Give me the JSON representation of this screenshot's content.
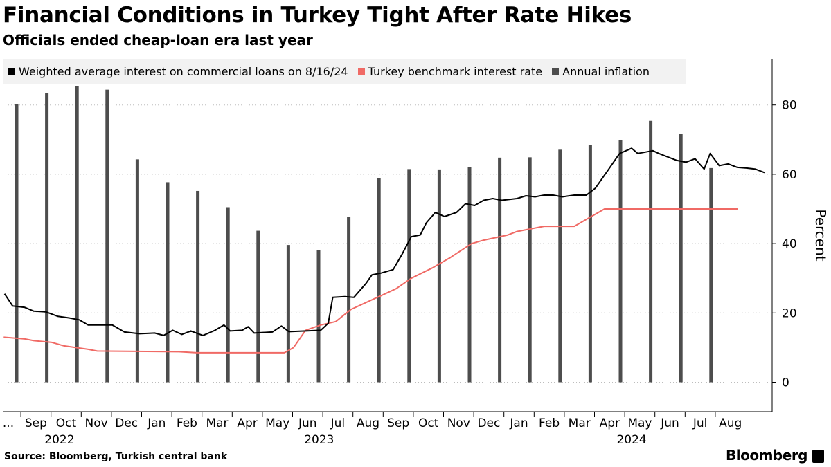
{
  "header": {
    "title": "Financial Conditions in Turkey Tight After Rate Hikes",
    "subtitle": "Officials ended cheap-loan era last year"
  },
  "footer": {
    "source": "Source: Bloomberg, Turkish central bank",
    "brand": "Bloomberg"
  },
  "colors": {
    "loans": "#000000",
    "benchmark": "#f06a65",
    "inflation": "#4d4d4d"
  },
  "chart_data": {
    "type": "bar+line",
    "title": "Financial Conditions in Turkey Tight After Rate Hikes",
    "ylabel": "Percent",
    "ylim": [
      -8,
      92
    ],
    "yticks": [
      0,
      20,
      40,
      60,
      80
    ],
    "x_range": [
      0.0,
      24.33
    ],
    "x_month_labels": [
      {
        "label": "...",
        "x": 0.0
      },
      {
        "label": "Sep",
        "x": 1.0
      },
      {
        "label": "Oct",
        "x": 2.0
      },
      {
        "label": "Nov",
        "x": 3.0
      },
      {
        "label": "Dec",
        "x": 4.0
      },
      {
        "label": "Jan",
        "x": 5.0
      },
      {
        "label": "Feb",
        "x": 6.0
      },
      {
        "label": "Mar",
        "x": 7.0
      },
      {
        "label": "Apr",
        "x": 8.0
      },
      {
        "label": "May",
        "x": 9.0
      },
      {
        "label": "Jun",
        "x": 10.0
      },
      {
        "label": "Jul",
        "x": 11.0
      },
      {
        "label": "Aug",
        "x": 12.0
      },
      {
        "label": "Sep",
        "x": 13.0
      },
      {
        "label": "Oct",
        "x": 14.0
      },
      {
        "label": "Nov",
        "x": 15.0
      },
      {
        "label": "Dec",
        "x": 16.0
      },
      {
        "label": "Jan",
        "x": 17.0
      },
      {
        "label": "Feb",
        "x": 18.0
      },
      {
        "label": "Mar",
        "x": 19.0
      },
      {
        "label": "Apr",
        "x": 20.0
      },
      {
        "label": "May",
        "x": 21.0
      },
      {
        "label": "Jun",
        "x": 22.0
      },
      {
        "label": "Jul",
        "x": 23.0
      },
      {
        "label": "Aug",
        "x": 24.0
      }
    ],
    "x_year_labels": [
      {
        "label": "2022",
        "x": 1.85
      },
      {
        "label": "2023",
        "x": 10.45
      },
      {
        "label": "2024",
        "x": 20.8
      }
    ],
    "legend": [
      {
        "key": "loans",
        "label": "Weighted average interest on commercial loans on 8/16/24"
      },
      {
        "key": "benchmark",
        "label": "Turkey benchmark interest rate"
      },
      {
        "key": "inflation",
        "label": "Annual inflation"
      }
    ],
    "series": [
      {
        "key": "inflation",
        "name": "Annual inflation",
        "type": "bar",
        "x": [
          0.43,
          1.43,
          2.43,
          3.43,
          4.43,
          5.43,
          6.43,
          7.43,
          8.43,
          9.43,
          10.43,
          11.43,
          12.43,
          13.43,
          14.43,
          15.43,
          16.43,
          17.43,
          18.43,
          19.43,
          20.43,
          21.43,
          22.43,
          23.43
        ],
        "values": [
          80.2,
          83.5,
          85.5,
          84.4,
          64.3,
          57.7,
          55.2,
          50.5,
          43.7,
          39.6,
          38.2,
          47.8,
          58.9,
          61.5,
          61.4,
          62.0,
          64.8,
          64.9,
          67.1,
          68.5,
          69.8,
          75.4,
          71.6,
          61.8
        ]
      },
      {
        "key": "benchmark",
        "name": "Turkey benchmark interest rate",
        "type": "step-line",
        "points": [
          [
            0.0,
            13.0
          ],
          [
            0.7,
            12.5
          ],
          [
            1.0,
            12.0
          ],
          [
            1.6,
            11.5
          ],
          [
            2.0,
            10.5
          ],
          [
            2.8,
            9.5
          ],
          [
            3.1,
            9.0
          ],
          [
            5.8,
            8.8
          ],
          [
            6.4,
            8.5
          ],
          [
            9.3,
            8.5
          ],
          [
            9.6,
            10.0
          ],
          [
            10.0,
            15.0
          ],
          [
            10.5,
            16.5
          ],
          [
            11.0,
            17.5
          ],
          [
            11.5,
            21.0
          ],
          [
            12.5,
            25.0
          ],
          [
            13.0,
            27.0
          ],
          [
            13.5,
            30.0
          ],
          [
            14.2,
            33.0
          ],
          [
            14.8,
            36.0
          ],
          [
            15.5,
            40.0
          ],
          [
            15.9,
            41.0
          ],
          [
            16.7,
            42.5
          ],
          [
            17.0,
            43.5
          ],
          [
            17.9,
            45.0
          ],
          [
            18.9,
            45.0
          ],
          [
            19.9,
            50.0
          ],
          [
            24.33,
            50.0
          ]
        ]
      },
      {
        "key": "loans",
        "name": "Weighted average interest on commercial loans on 8/16/24",
        "type": "line",
        "points": [
          [
            0.03,
            25.5
          ],
          [
            0.3,
            22.0
          ],
          [
            0.7,
            21.6
          ],
          [
            1.0,
            20.5
          ],
          [
            1.4,
            20.3
          ],
          [
            1.8,
            19.0
          ],
          [
            2.2,
            18.5
          ],
          [
            2.5,
            18.0
          ],
          [
            2.8,
            16.5
          ],
          [
            3.2,
            16.5
          ],
          [
            3.6,
            16.5
          ],
          [
            4.0,
            14.5
          ],
          [
            4.5,
            14.0
          ],
          [
            5.0,
            14.2
          ],
          [
            5.3,
            13.5
          ],
          [
            5.6,
            15.0
          ],
          [
            5.9,
            13.8
          ],
          [
            6.2,
            14.8
          ],
          [
            6.6,
            13.5
          ],
          [
            7.0,
            15.0
          ],
          [
            7.3,
            16.5
          ],
          [
            7.5,
            14.8
          ],
          [
            7.9,
            15.0
          ],
          [
            8.1,
            16.0
          ],
          [
            8.3,
            14.2
          ],
          [
            8.9,
            14.5
          ],
          [
            9.2,
            16.2
          ],
          [
            9.45,
            14.6
          ],
          [
            10.0,
            14.8
          ],
          [
            10.5,
            15.0
          ],
          [
            10.75,
            17.0
          ],
          [
            10.9,
            24.5
          ],
          [
            11.3,
            24.7
          ],
          [
            11.6,
            24.5
          ],
          [
            12.0,
            28.5
          ],
          [
            12.2,
            31.0
          ],
          [
            12.5,
            31.5
          ],
          [
            12.9,
            32.5
          ],
          [
            13.2,
            37.0
          ],
          [
            13.5,
            42.0
          ],
          [
            13.8,
            42.5
          ],
          [
            14.0,
            46.0
          ],
          [
            14.3,
            49.0
          ],
          [
            14.6,
            47.8
          ],
          [
            15.0,
            49.0
          ],
          [
            15.3,
            51.5
          ],
          [
            15.6,
            51.0
          ],
          [
            15.9,
            52.5
          ],
          [
            16.2,
            53.0
          ],
          [
            16.5,
            52.5
          ],
          [
            17.0,
            53.0
          ],
          [
            17.3,
            53.8
          ],
          [
            17.6,
            53.5
          ],
          [
            17.9,
            54.0
          ],
          [
            18.2,
            54.0
          ],
          [
            18.5,
            53.5
          ],
          [
            18.9,
            54.0
          ],
          [
            19.3,
            54.0
          ],
          [
            19.6,
            56.0
          ],
          [
            20.0,
            61.0
          ],
          [
            20.4,
            66.0
          ],
          [
            20.8,
            67.5
          ],
          [
            21.0,
            66.0
          ],
          [
            21.5,
            66.8
          ],
          [
            21.7,
            66.0
          ],
          [
            22.0,
            65.0
          ],
          [
            22.3,
            64.0
          ],
          [
            22.6,
            63.5
          ],
          [
            22.9,
            64.5
          ],
          [
            23.2,
            61.5
          ],
          [
            23.4,
            66.0
          ],
          [
            23.7,
            62.5
          ],
          [
            24.0,
            63.0
          ],
          [
            24.3,
            62.0
          ],
          [
            24.6,
            61.8
          ],
          [
            24.9,
            61.5
          ],
          [
            25.2,
            60.5
          ]
        ]
      }
    ]
  }
}
